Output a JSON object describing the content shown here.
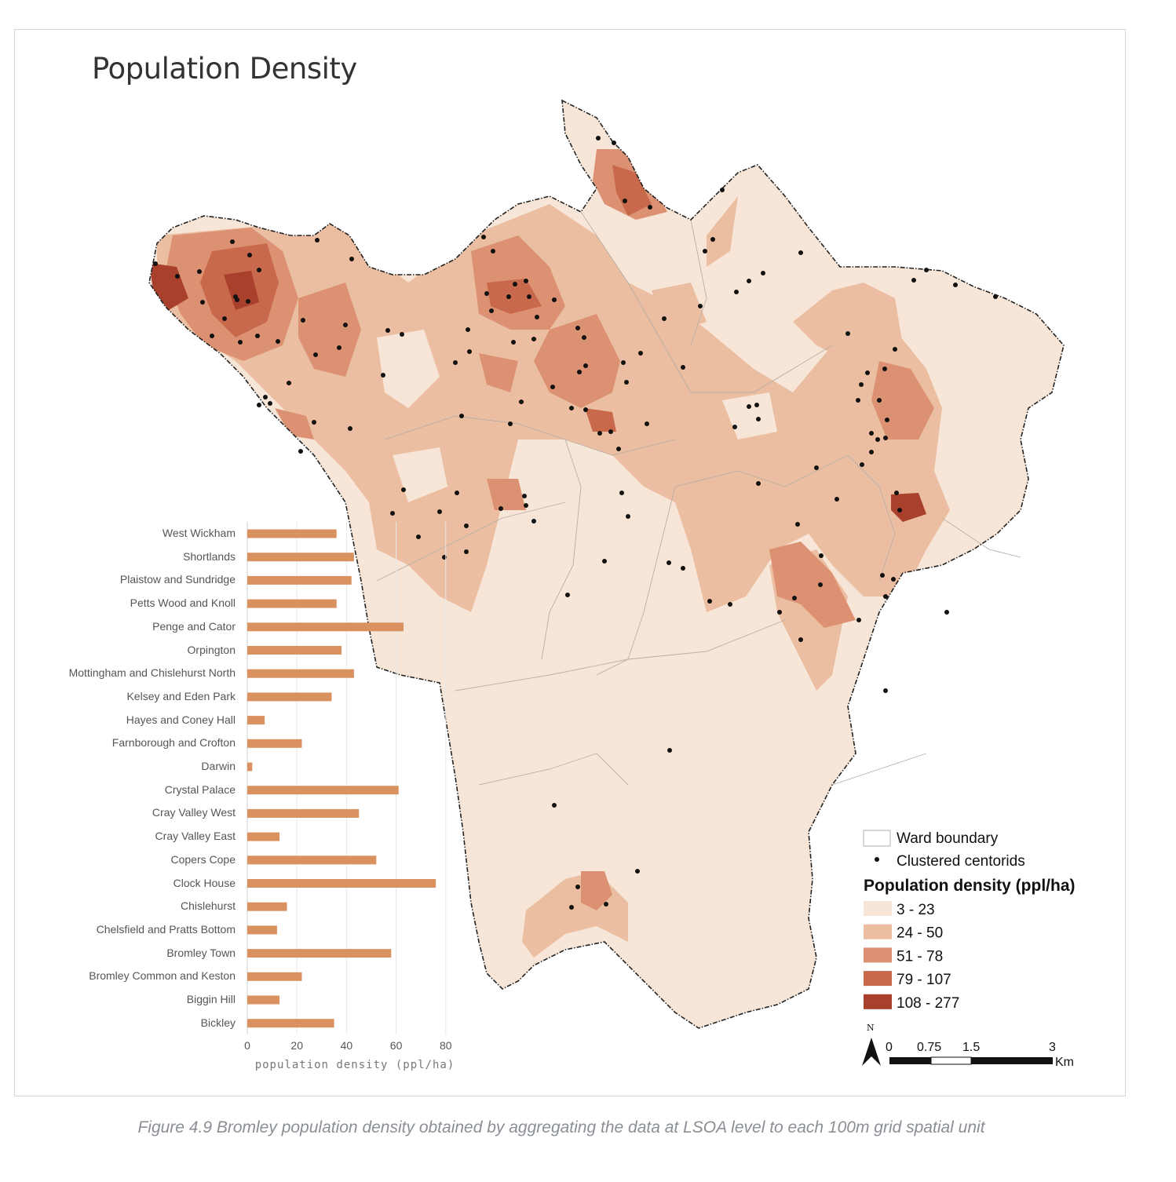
{
  "title": "Population Density",
  "caption": "Figure 4.9 Bromley population density obtained by aggregating the data at LSOA level to each 100m grid spatial unit",
  "legend": {
    "ward_boundary": "Ward boundary",
    "clustered_centroids": "Clustered centorids",
    "heading": "Population density (ppl/ha)",
    "classes": [
      {
        "label": "3 - 23",
        "color": "#f7e6d7"
      },
      {
        "label": "24 - 50",
        "color": "#ebbea1"
      },
      {
        "label": "51 - 78",
        "color": "#dc9272"
      },
      {
        "label": "79 - 107",
        "color": "#c8694b"
      },
      {
        "label": "108 - 277",
        "color": "#a8402b"
      }
    ]
  },
  "north_label": "N",
  "scalebar": {
    "ticks": [
      "0",
      "0.75",
      "1.5",
      "3"
    ],
    "unit": "Km"
  },
  "chart_data": {
    "type": "bar",
    "orientation": "horizontal",
    "categories": [
      "West Wickham",
      "Shortlands",
      "Plaistow and Sundridge",
      "Petts Wood and Knoll",
      "Penge and Cator",
      "Orpington",
      "Mottingham and Chislehurst North",
      "Kelsey and Eden Park",
      "Hayes and Coney Hall",
      "Farnborough and Crofton",
      "Darwin",
      "Crystal Palace",
      "Cray Valley West",
      "Cray Valley East",
      "Copers Cope",
      "Clock House",
      "Chislehurst",
      "Chelsfield and Pratts Bottom",
      "Bromley Town",
      "Bromley Common and Keston",
      "Biggin Hill",
      "Bickley"
    ],
    "values": [
      36,
      43,
      42,
      36,
      63,
      38,
      43,
      34,
      7,
      22,
      2,
      61,
      45,
      13,
      52,
      76,
      16,
      12,
      58,
      22,
      13,
      35
    ],
    "xlabel": "population density (ppl/ha)",
    "xlim": [
      0,
      80
    ],
    "xticks": [
      "0",
      "20",
      "40",
      "60",
      "80"
    ],
    "bar_color": "#d9925f",
    "grid": true
  }
}
